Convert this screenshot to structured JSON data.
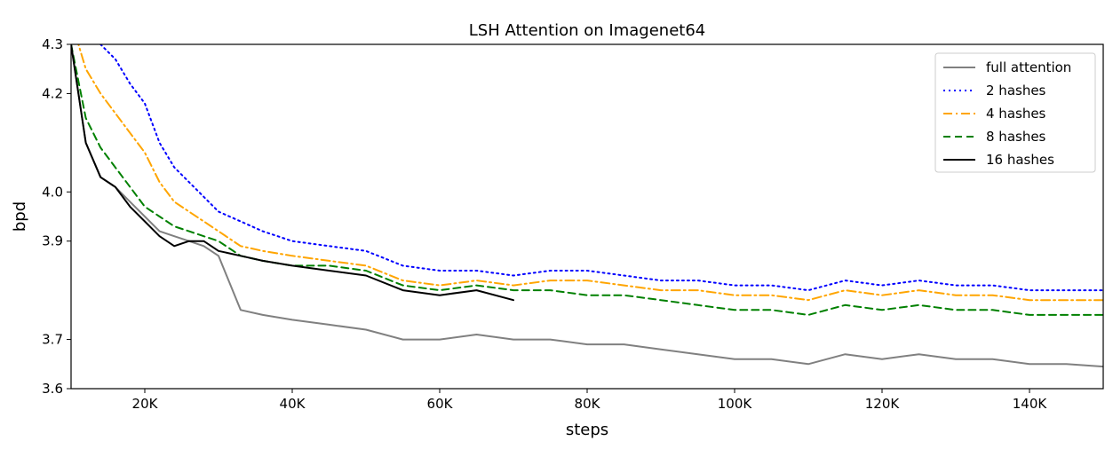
{
  "chart_data": {
    "type": "line",
    "title": "LSH Attention on Imagenet64",
    "xlabel": "steps",
    "ylabel": "bpd",
    "xlim": [
      10000,
      150000
    ],
    "ylim": [
      3.6,
      4.3
    ],
    "x_ticks": [
      {
        "value": 20000,
        "label": "20K"
      },
      {
        "value": 40000,
        "label": "40K"
      },
      {
        "value": 60000,
        "label": "60K"
      },
      {
        "value": 80000,
        "label": "80K"
      },
      {
        "value": 100000,
        "label": "100K"
      },
      {
        "value": 120000,
        "label": "120K"
      },
      {
        "value": 140000,
        "label": "140K"
      }
    ],
    "y_ticks": [
      {
        "value": 3.6,
        "label": "3.6"
      },
      {
        "value": 3.7,
        "label": "3.7"
      },
      {
        "value": 3.9,
        "label": "3.9"
      },
      {
        "value": 4.0,
        "label": "4.0"
      },
      {
        "value": 4.2,
        "label": "4.2"
      },
      {
        "value": 4.3,
        "label": "4.3"
      }
    ],
    "grid": false,
    "legend_position": "top-right",
    "series": [
      {
        "name": "full attention",
        "color": "#808080",
        "dash": "solid",
        "x": [
          10000,
          12000,
          14000,
          16000,
          18000,
          20000,
          22000,
          24000,
          26000,
          28000,
          30000,
          33000,
          36000,
          40000,
          45000,
          50000,
          55000,
          60000,
          65000,
          70000,
          75000,
          80000,
          85000,
          90000,
          95000,
          100000,
          105000,
          110000,
          115000,
          120000,
          125000,
          130000,
          135000,
          140000,
          145000,
          150000
        ],
        "y": [
          4.3,
          4.1,
          4.03,
          4.01,
          3.98,
          3.95,
          3.92,
          3.91,
          3.9,
          3.89,
          3.87,
          3.76,
          3.75,
          3.74,
          3.73,
          3.72,
          3.7,
          3.7,
          3.71,
          3.7,
          3.7,
          3.69,
          3.69,
          3.68,
          3.67,
          3.66,
          3.66,
          3.65,
          3.67,
          3.66,
          3.67,
          3.66,
          3.66,
          3.65,
          3.65,
          3.645
        ]
      },
      {
        "name": "2 hashes",
        "color": "#0000ff",
        "dash": "dotted",
        "x": [
          10000,
          12000,
          14000,
          16000,
          18000,
          20000,
          22000,
          24000,
          26000,
          28000,
          30000,
          33000,
          36000,
          40000,
          45000,
          50000,
          55000,
          60000,
          65000,
          70000,
          75000,
          80000,
          85000,
          90000,
          95000,
          100000,
          105000,
          110000,
          115000,
          120000,
          125000,
          130000,
          135000,
          140000,
          145000,
          150000
        ],
        "y": [
          4.45,
          4.35,
          4.3,
          4.27,
          4.22,
          4.18,
          4.1,
          4.05,
          4.02,
          3.99,
          3.96,
          3.94,
          3.92,
          3.9,
          3.89,
          3.88,
          3.85,
          3.84,
          3.84,
          3.83,
          3.84,
          3.84,
          3.83,
          3.82,
          3.82,
          3.81,
          3.81,
          3.8,
          3.82,
          3.81,
          3.82,
          3.81,
          3.81,
          3.8,
          3.8,
          3.8
        ]
      },
      {
        "name": "4 hashes",
        "color": "#ffa500",
        "dash": "dashdot",
        "x": [
          10000,
          12000,
          14000,
          16000,
          18000,
          20000,
          22000,
          24000,
          26000,
          28000,
          30000,
          33000,
          36000,
          40000,
          45000,
          50000,
          55000,
          60000,
          65000,
          70000,
          75000,
          80000,
          85000,
          90000,
          95000,
          100000,
          105000,
          110000,
          115000,
          120000,
          125000,
          130000,
          135000,
          140000,
          145000,
          150000
        ],
        "y": [
          4.35,
          4.25,
          4.2,
          4.16,
          4.12,
          4.08,
          4.02,
          3.98,
          3.96,
          3.94,
          3.92,
          3.89,
          3.88,
          3.87,
          3.86,
          3.85,
          3.82,
          3.81,
          3.82,
          3.81,
          3.82,
          3.82,
          3.81,
          3.8,
          3.8,
          3.79,
          3.79,
          3.78,
          3.8,
          3.79,
          3.8,
          3.79,
          3.79,
          3.78,
          3.78,
          3.78
        ]
      },
      {
        "name": "8 hashes",
        "color": "#008000",
        "dash": "dashed",
        "x": [
          10000,
          12000,
          14000,
          16000,
          18000,
          20000,
          22000,
          24000,
          26000,
          28000,
          30000,
          33000,
          36000,
          40000,
          45000,
          50000,
          55000,
          60000,
          65000,
          70000,
          75000,
          80000,
          85000,
          90000,
          95000,
          100000,
          105000,
          110000,
          115000,
          120000,
          125000,
          130000,
          135000,
          140000,
          145000,
          150000
        ],
        "y": [
          4.3,
          4.15,
          4.09,
          4.05,
          4.01,
          3.97,
          3.95,
          3.93,
          3.92,
          3.91,
          3.9,
          3.87,
          3.86,
          3.85,
          3.85,
          3.84,
          3.81,
          3.8,
          3.81,
          3.8,
          3.8,
          3.79,
          3.79,
          3.78,
          3.77,
          3.76,
          3.76,
          3.75,
          3.77,
          3.76,
          3.77,
          3.76,
          3.76,
          3.75,
          3.75,
          3.75
        ]
      },
      {
        "name": "16 hashes",
        "color": "#000000",
        "dash": "solid",
        "x": [
          10000,
          12000,
          14000,
          16000,
          18000,
          20000,
          22000,
          24000,
          26000,
          28000,
          30000,
          33000,
          36000,
          40000,
          45000,
          50000,
          55000,
          60000,
          65000,
          70000
        ],
        "y": [
          4.3,
          4.1,
          4.03,
          4.01,
          3.97,
          3.94,
          3.91,
          3.89,
          3.9,
          3.9,
          3.88,
          3.87,
          3.86,
          3.85,
          3.84,
          3.83,
          3.8,
          3.79,
          3.8,
          3.78
        ]
      }
    ]
  }
}
